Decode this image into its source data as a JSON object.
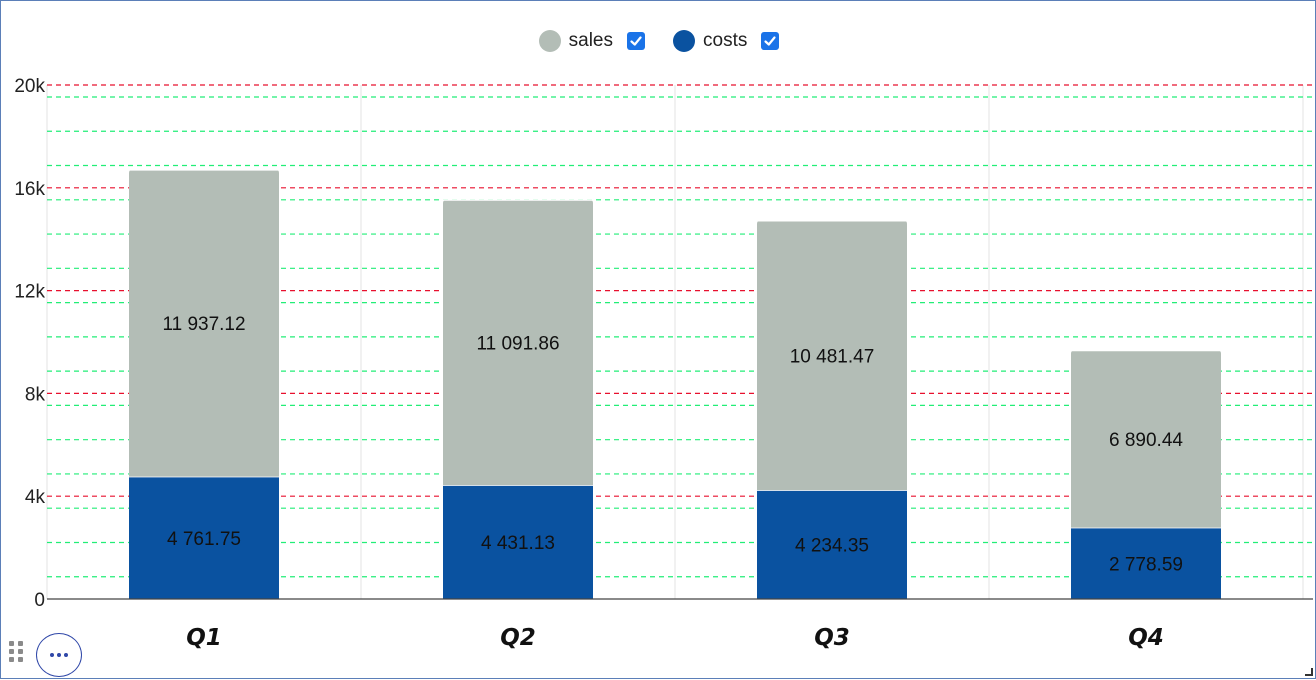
{
  "legend": {
    "items": [
      {
        "label": "sales",
        "color": "#b3bdb6",
        "checked": true
      },
      {
        "label": "costs",
        "color": "#0a52a0",
        "checked": true
      }
    ]
  },
  "chart_data": {
    "type": "bar",
    "stacked": true,
    "categories": [
      "Q1",
      "Q2",
      "Q3",
      "Q4"
    ],
    "series": [
      {
        "name": "costs",
        "color": "#0a52a0",
        "values": [
          4761.75,
          4431.13,
          4234.35,
          2778.59
        ],
        "labels": [
          "4 761.75",
          "4 431.13",
          "4 234.35",
          "2 778.59"
        ]
      },
      {
        "name": "sales",
        "color": "#b3bdb6",
        "values": [
          11937.12,
          11091.86,
          10481.47,
          6890.44
        ],
        "labels": [
          "11 937.12",
          "11 091.86",
          "10 481.47",
          "6 890.44"
        ]
      }
    ],
    "ylim": [
      0,
      20000
    ],
    "y_ticks": [
      0,
      4000,
      8000,
      12000,
      16000,
      20000
    ],
    "y_tick_labels": [
      "0",
      "4k",
      "8k",
      "12k",
      "16k",
      "20k"
    ],
    "major_grid_color": "#e8102e",
    "minor_grid_color": "#22ee77",
    "legend_position": "top-center",
    "title": "",
    "xlabel": "",
    "ylabel": ""
  }
}
